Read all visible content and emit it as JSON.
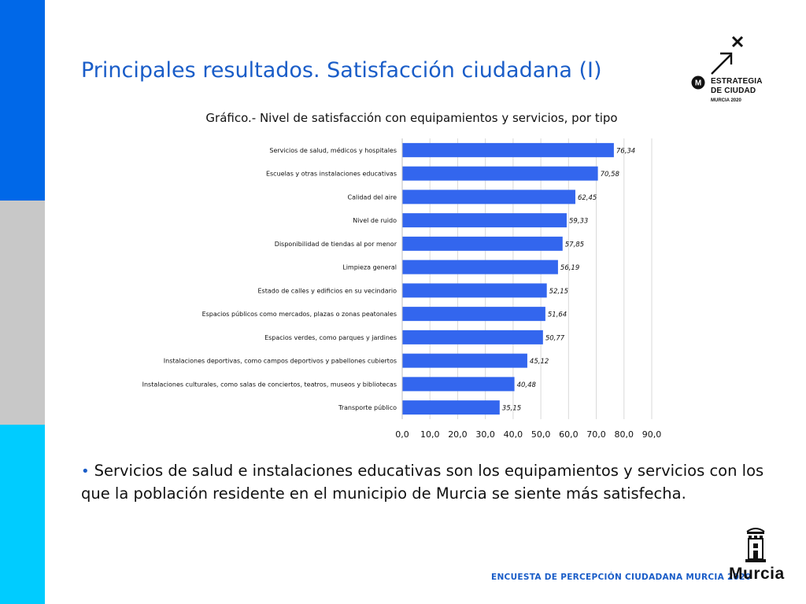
{
  "title": "Principales resultados. Satisfacción ciudadana (I)",
  "chart_data": {
    "type": "bar",
    "orientation": "horizontal",
    "title": "Gráfico.- Nivel de satisfacción con equipamientos y servicios, por tipo",
    "categories": [
      "Servicios de salud, médicos y hospitales",
      "Escuelas y otras instalaciones educativas",
      "Calidad del aire",
      "Nivel de ruido",
      "Disponibilidad de tiendas al por menor",
      "Limpieza general",
      "Estado de calles y edificios en su vecindario",
      "Espacios públicos como mercados, plazas o zonas peatonales",
      "Espacios verdes, como parques y jardines",
      "Instalaciones deportivas, como campos deportivos y pabellones cubiertos",
      "Instalaciones culturales, como salas de conciertos, teatros, museos y bibliotecas",
      "Transporte público"
    ],
    "values": [
      76.34,
      70.58,
      62.45,
      59.33,
      57.85,
      56.19,
      52.15,
      51.64,
      50.77,
      45.12,
      40.48,
      35.15
    ],
    "value_labels": [
      "76,34",
      "70,58",
      "62,45",
      "59,33",
      "57,85",
      "56,19",
      "52,15",
      "51,64",
      "50,77",
      "45,12",
      "40,48",
      "35,15"
    ],
    "xlim": [
      0,
      90
    ],
    "xticks": [
      "0,0",
      "10,0",
      "20,0",
      "30,0",
      "40,0",
      "50,0",
      "60,0",
      "70,0",
      "80,0",
      "90,0"
    ],
    "grid": true,
    "bar_color": "#3366ee"
  },
  "body": {
    "bullet": "•",
    "text": "Servicios de salud e instalaciones educativas son los equipamientos y servicios con los que la población residente en el municipio de Murcia se siente más satisfecha."
  },
  "footer": "ENCUESTA DE PERCEPCIÓN CIUDADANA MURCIA 2020",
  "logo_strategy": {
    "line1": "ESTRATEGIA",
    "line2": "DE CIUDAD",
    "line3": "MURCIA 2020",
    "icon": "arrow-cross-logo-icon"
  },
  "logo_murcia": {
    "word": "Murcia",
    "icon": "castle-crest-icon"
  },
  "colors": {
    "band_top": "#0068e8",
    "band_mid": "#c8c8c8",
    "band_bottom": "#00ccff",
    "accent_text": "#1a5dc8"
  }
}
